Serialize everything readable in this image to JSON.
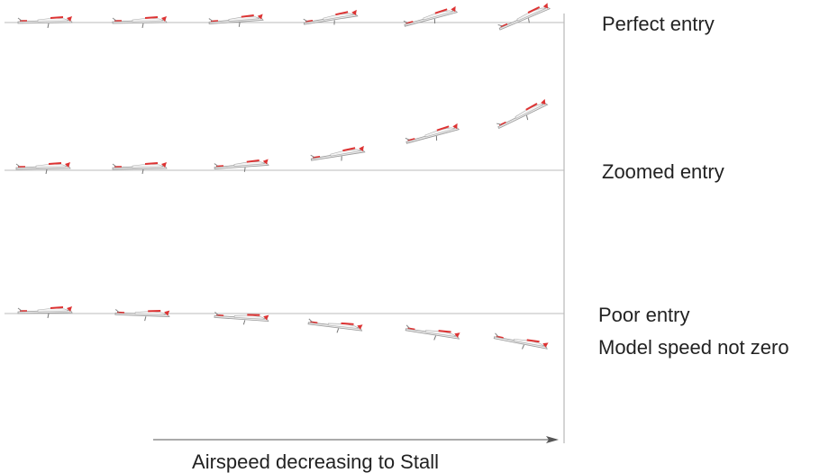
{
  "labels": {
    "perfect": "Perfect entry",
    "zoomed": "Zoomed entry",
    "poor": "Poor entry",
    "poor_note": "Model speed not zero"
  },
  "axis_label": "Airspeed decreasing to Stall"
}
